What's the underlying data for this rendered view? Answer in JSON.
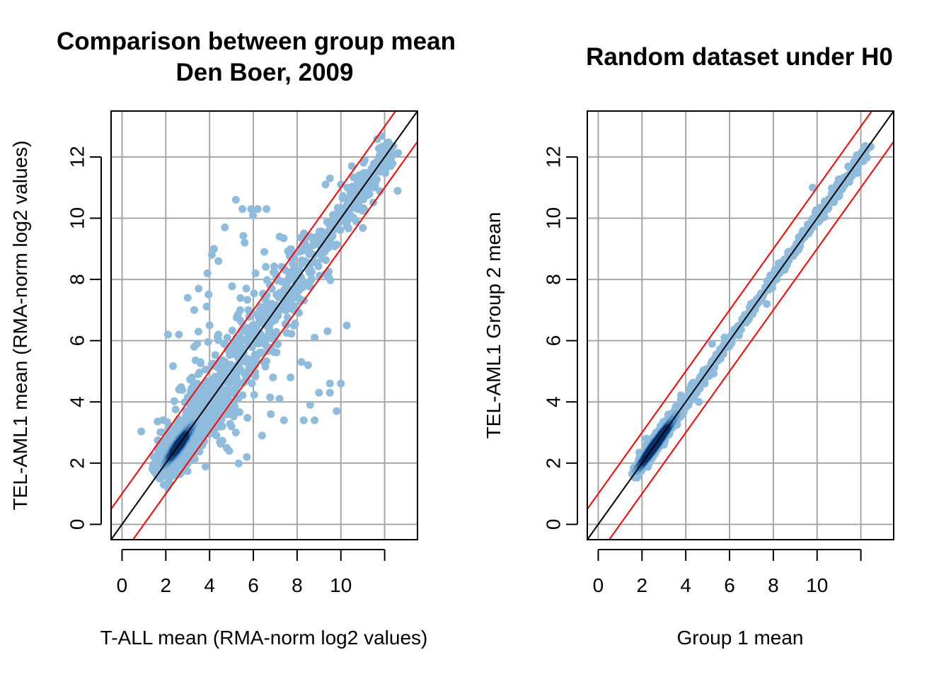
{
  "colors": {
    "grid": "#a6a6a6",
    "diagonal": "#000000",
    "fold_lines": "#ff0000",
    "points_light": "#8fbcdc",
    "points_mid": "#4a8cc6",
    "points_dark": "#08306b"
  },
  "chart_data": [
    {
      "type": "scatter",
      "title": [
        "Comparison between group mean",
        "Den Boer, 2009"
      ],
      "xlabel": "T-ALL mean (RMA-norm log2 values)",
      "ylabel": "TEL-AML1 mean (RMA-norm log2 values)",
      "xlim": [
        -0.5,
        13.5
      ],
      "ylim": [
        -0.5,
        13.5
      ],
      "x_ticks": [
        0,
        2,
        4,
        6,
        8,
        10,
        12
      ],
      "x_tick_labels": [
        "0",
        "2",
        "4",
        "6",
        "8",
        "10",
        ""
      ],
      "y_ticks": [
        0,
        2,
        4,
        6,
        8,
        10,
        12
      ],
      "y_tick_labels": [
        "0",
        "2",
        "4",
        "6",
        "8",
        "10",
        "12"
      ],
      "grid": true,
      "density_coloring": "smoothScatter-style blue density (darker = denser)",
      "reference_lines": [
        {
          "kind": "identity",
          "intercept": 0,
          "slope": 1,
          "color": "black"
        },
        {
          "kind": "fold",
          "intercept": 1,
          "slope": 1,
          "color": "red"
        },
        {
          "kind": "fold",
          "intercept": -1,
          "slope": 1,
          "color": "red"
        }
      ],
      "spread": "wide",
      "outliers": [
        [
          2.1,
          6.2
        ],
        [
          2.6,
          6.2
        ],
        [
          3.3,
          7.0
        ],
        [
          3.5,
          7.7
        ],
        [
          3.9,
          8.2
        ],
        [
          4.0,
          6.5
        ],
        [
          3.0,
          7.4
        ],
        [
          4.2,
          9.0
        ],
        [
          4.4,
          8.6
        ],
        [
          4.7,
          9.7
        ],
        [
          5.2,
          10.6
        ],
        [
          5.5,
          10.3
        ],
        [
          5.9,
          10.3
        ],
        [
          6.2,
          10.3
        ],
        [
          6.6,
          10.3
        ],
        [
          5.6,
          9.2
        ],
        [
          6.1,
          8.2
        ],
        [
          6.5,
          8.9
        ],
        [
          7.2,
          9.4
        ],
        [
          7.8,
          8.5
        ],
        [
          4.4,
          6.2
        ],
        [
          5.0,
          5.6
        ],
        [
          4.1,
          8.8
        ],
        [
          5.4,
          7.0
        ],
        [
          6.9,
          4.8
        ],
        [
          7.7,
          4.8
        ],
        [
          8.6,
          3.9
        ],
        [
          8.8,
          3.4
        ],
        [
          9.0,
          4.3
        ],
        [
          9.5,
          4.6
        ],
        [
          9.8,
          3.7
        ],
        [
          10.0,
          4.6
        ],
        [
          8.3,
          3.4
        ],
        [
          7.4,
          3.4
        ],
        [
          6.8,
          3.6
        ],
        [
          6.4,
          2.9
        ],
        [
          5.7,
          2.2
        ],
        [
          5.2,
          3.0
        ],
        [
          4.9,
          2.4
        ],
        [
          8.2,
          5.3
        ],
        [
          8.8,
          6.1
        ],
        [
          8.5,
          5.2
        ],
        [
          9.5,
          4.3
        ],
        [
          7.2,
          4.1
        ],
        [
          3.3,
          5.8
        ],
        [
          3.2,
          4.8
        ],
        [
          2.6,
          4.4
        ],
        [
          5.0,
          3.2
        ],
        [
          10.3,
          11.0
        ],
        [
          10.0,
          11.1
        ],
        [
          9.5,
          11.3
        ],
        [
          9.3,
          11.1
        ],
        [
          10.5,
          11.7
        ]
      ]
    },
    {
      "type": "scatter",
      "title": [
        "Random dataset under H0"
      ],
      "xlabel": "Group 1 mean",
      "ylabel": "TEL-AML1 Group 2 mean",
      "xlim": [
        -0.5,
        13.5
      ],
      "ylim": [
        -0.5,
        13.5
      ],
      "x_ticks": [
        0,
        2,
        4,
        6,
        8,
        10,
        12
      ],
      "x_tick_labels": [
        "0",
        "2",
        "4",
        "6",
        "8",
        "10",
        ""
      ],
      "y_ticks": [
        0,
        2,
        4,
        6,
        8,
        10,
        12
      ],
      "y_tick_labels": [
        "0",
        "2",
        "4",
        "6",
        "8",
        "10",
        "12"
      ],
      "grid": true,
      "density_coloring": "smoothScatter-style blue density (darker = denser)",
      "reference_lines": [
        {
          "kind": "identity",
          "intercept": 0,
          "slope": 1,
          "color": "black"
        },
        {
          "kind": "fold",
          "intercept": 1,
          "slope": 1,
          "color": "red"
        },
        {
          "kind": "fold",
          "intercept": -1,
          "slope": 1,
          "color": "red"
        }
      ],
      "spread": "narrow",
      "outliers": [
        [
          9.8,
          11.0
        ],
        [
          5.2,
          5.9
        ],
        [
          7.7,
          7.2
        ],
        [
          4.6,
          4.0
        ],
        [
          2.2,
          2.8
        ]
      ]
    }
  ]
}
